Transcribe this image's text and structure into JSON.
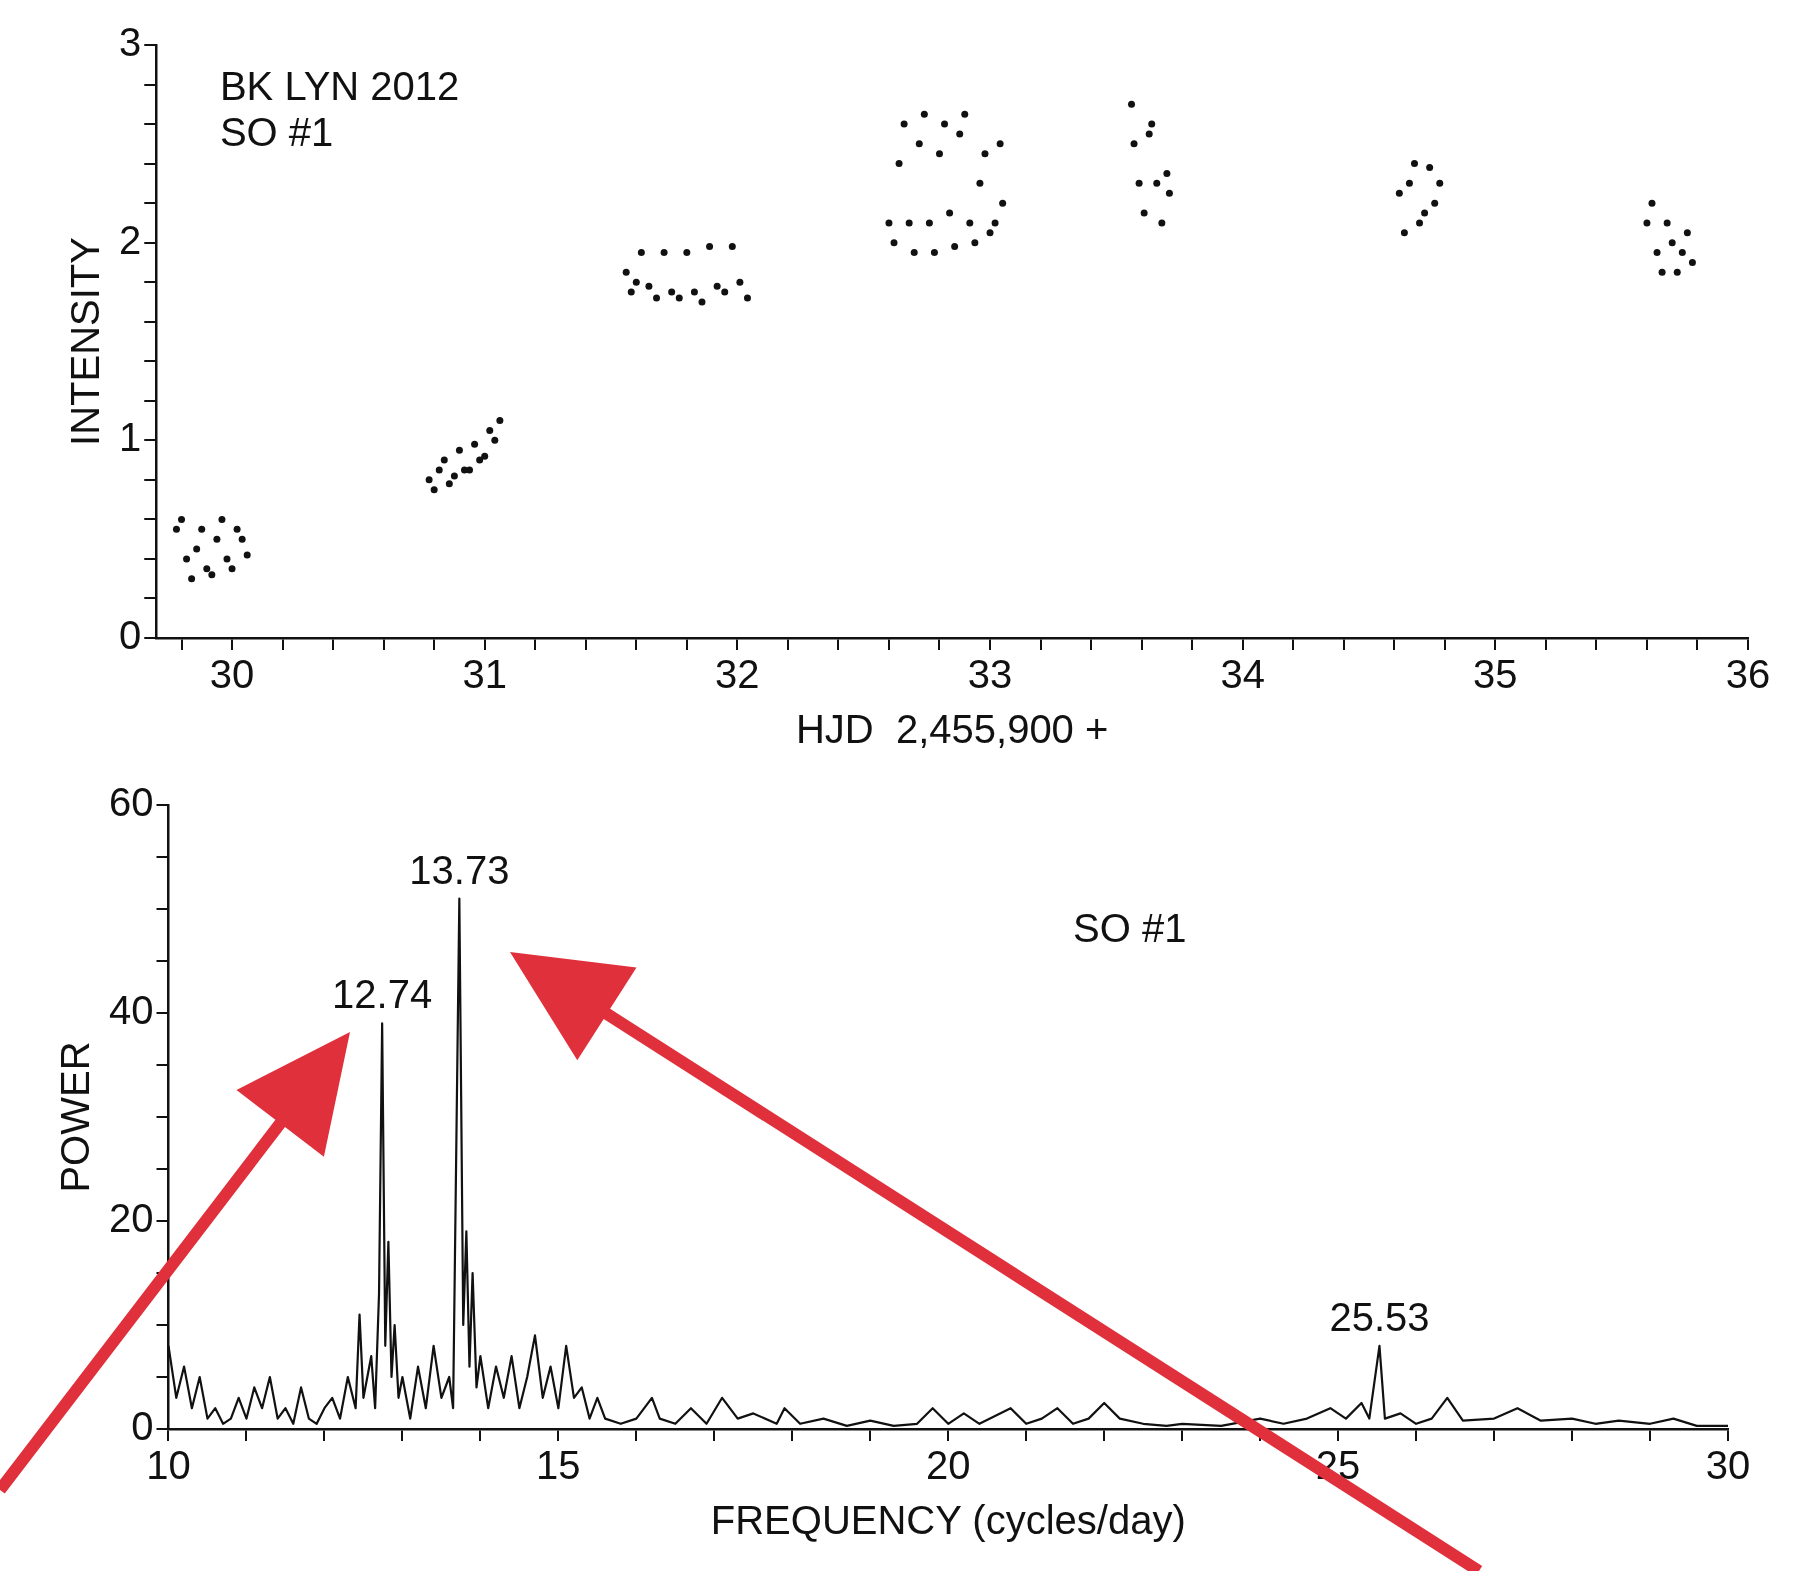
{
  "chart_data": [
    {
      "type": "scatter",
      "xlabel": "HJD  2,455,900 +",
      "ylabel": "INTENSITY",
      "annotations": [
        "BK LYN 2012",
        "SO #1"
      ],
      "xlim": [
        29.7,
        36
      ],
      "xticks": [
        {
          "value": 29.8,
          "label": null
        },
        30,
        {
          "value": 30.2,
          "label": null
        },
        {
          "value": 30.4,
          "label": null
        },
        {
          "value": 30.6,
          "label": null
        },
        {
          "value": 30.8,
          "label": null
        },
        31,
        {
          "value": 31.2,
          "label": null
        },
        {
          "value": 31.4,
          "label": null
        },
        {
          "value": 31.6,
          "label": null
        },
        {
          "value": 31.8,
          "label": null
        },
        32,
        {
          "value": 32.2,
          "label": null
        },
        {
          "value": 32.4,
          "label": null
        },
        {
          "value": 32.6,
          "label": null
        },
        {
          "value": 32.8,
          "label": null
        },
        33,
        {
          "value": 33.2,
          "label": null
        },
        {
          "value": 33.4,
          "label": null
        },
        {
          "value": 33.6,
          "label": null
        },
        {
          "value": 33.8,
          "label": null
        },
        34,
        {
          "value": 34.2,
          "label": null
        },
        {
          "value": 34.4,
          "label": null
        },
        {
          "value": 34.6,
          "label": null
        },
        {
          "value": 34.8,
          "label": null
        },
        35,
        {
          "value": 35.2,
          "label": null
        },
        {
          "value": 35.4,
          "label": null
        },
        {
          "value": 35.6,
          "label": null
        },
        {
          "value": 35.8,
          "label": null
        },
        36
      ],
      "ylim": [
        0,
        3
      ],
      "yticks": [
        0,
        {
          "value": 0.2,
          "label": null
        },
        {
          "value": 0.4,
          "label": null
        },
        {
          "value": 0.6,
          "label": null
        },
        {
          "value": 0.8,
          "label": null
        },
        1,
        {
          "value": 1.2,
          "label": null
        },
        {
          "value": 1.4,
          "label": null
        },
        {
          "value": 1.6,
          "label": null
        },
        {
          "value": 1.8,
          "label": null
        },
        2,
        {
          "value": 2.2,
          "label": null
        },
        {
          "value": 2.4,
          "label": null
        },
        {
          "value": 2.6,
          "label": null
        },
        {
          "value": 2.8,
          "label": null
        },
        3
      ],
      "marker": "circle",
      "grid": false,
      "legend": false,
      "series": [
        {
          "color": "#111111",
          "x": [
            29.78,
            29.8,
            29.82,
            29.84,
            29.86,
            29.88,
            29.9,
            29.92,
            29.94,
            29.96,
            29.98,
            30.0,
            30.02,
            30.04,
            30.06,
            30.78,
            30.8,
            30.82,
            30.84,
            30.86,
            30.88,
            30.9,
            30.92,
            30.94,
            30.96,
            30.98,
            31.0,
            31.02,
            31.04,
            31.06,
            31.56,
            31.58,
            31.6,
            31.62,
            31.65,
            31.68,
            31.71,
            31.74,
            31.77,
            31.8,
            31.83,
            31.86,
            31.89,
            31.92,
            31.95,
            31.98,
            32.01,
            32.04,
            32.6,
            32.62,
            32.64,
            32.66,
            32.68,
            32.7,
            32.72,
            32.74,
            32.76,
            32.78,
            32.8,
            32.82,
            32.84,
            32.86,
            32.88,
            32.9,
            32.92,
            32.94,
            32.96,
            32.98,
            33.0,
            33.02,
            33.04,
            33.05,
            33.56,
            33.57,
            33.59,
            33.61,
            33.63,
            33.64,
            33.66,
            33.68,
            33.7,
            33.71,
            34.62,
            34.64,
            34.66,
            34.68,
            34.7,
            34.72,
            34.74,
            34.76,
            34.78,
            35.6,
            35.62,
            35.64,
            35.66,
            35.68,
            35.7,
            35.72,
            35.74,
            35.76,
            35.78
          ],
          "values": [
            0.55,
            0.6,
            0.4,
            0.3,
            0.45,
            0.55,
            0.35,
            0.32,
            0.5,
            0.6,
            0.4,
            0.35,
            0.55,
            0.5,
            0.42,
            0.8,
            0.75,
            0.85,
            0.9,
            0.78,
            0.82,
            0.95,
            0.85,
            0.85,
            0.98,
            0.9,
            0.92,
            1.05,
            1.0,
            1.1,
            1.85,
            1.75,
            1.8,
            1.95,
            1.78,
            1.72,
            1.95,
            1.75,
            1.72,
            1.95,
            1.75,
            1.7,
            1.98,
            1.78,
            1.75,
            1.98,
            1.8,
            1.72,
            2.1,
            2.0,
            2.4,
            2.6,
            2.1,
            1.95,
            2.5,
            2.65,
            2.1,
            1.95,
            2.45,
            2.6,
            2.15,
            1.98,
            2.55,
            2.65,
            2.1,
            2.0,
            2.3,
            2.45,
            2.05,
            2.1,
            2.5,
            2.2,
            2.7,
            2.5,
            2.3,
            2.15,
            2.55,
            2.6,
            2.3,
            2.1,
            2.35,
            2.25,
            2.25,
            2.05,
            2.3,
            2.4,
            2.1,
            2.15,
            2.38,
            2.2,
            2.3,
            2.1,
            2.2,
            1.95,
            1.85,
            2.1,
            2.0,
            1.85,
            1.95,
            2.05,
            1.9
          ]
        }
      ]
    },
    {
      "type": "line",
      "xlabel": "FREQUENCY (cycles/day)",
      "ylabel": "POWER",
      "annotations": [
        {
          "text": "12.74",
          "x": 12.74,
          "y": 39
        },
        {
          "text": "13.73",
          "x": 13.73,
          "y": 51
        },
        {
          "text": "25.53",
          "x": 25.53,
          "y": 8
        },
        "SO #1"
      ],
      "xlim": [
        10,
        30
      ],
      "xticks": [
        10,
        {
          "value": 11,
          "label": null
        },
        {
          "value": 12,
          "label": null
        },
        {
          "value": 13,
          "label": null
        },
        {
          "value": 14,
          "label": null
        },
        15,
        {
          "value": 16,
          "label": null
        },
        {
          "value": 17,
          "label": null
        },
        {
          "value": 18,
          "label": null
        },
        {
          "value": 19,
          "label": null
        },
        20,
        {
          "value": 21,
          "label": null
        },
        {
          "value": 22,
          "label": null
        },
        {
          "value": 23,
          "label": null
        },
        {
          "value": 24,
          "label": null
        },
        25,
        {
          "value": 26,
          "label": null
        },
        {
          "value": 27,
          "label": null
        },
        {
          "value": 28,
          "label": null
        },
        {
          "value": 29,
          "label": null
        },
        30
      ],
      "ylim": [
        0,
        60
      ],
      "yticks": [
        0,
        {
          "value": 5,
          "label": null
        },
        {
          "value": 10,
          "label": null
        },
        {
          "value": 15,
          "label": null
        },
        20,
        {
          "value": 25,
          "label": null
        },
        {
          "value": 30,
          "label": null
        },
        {
          "value": 35,
          "label": null
        },
        40,
        {
          "value": 45,
          "label": null
        },
        {
          "value": 50,
          "label": null
        },
        {
          "value": 55,
          "label": null
        },
        60
      ],
      "marker": "none",
      "line_style": "solid",
      "grid": false,
      "legend": false,
      "series": [
        {
          "color": "#111111",
          "x": [
            10.0,
            10.1,
            10.2,
            10.3,
            10.4,
            10.5,
            10.6,
            10.7,
            10.8,
            10.9,
            11.0,
            11.1,
            11.2,
            11.3,
            11.4,
            11.5,
            11.6,
            11.7,
            11.8,
            11.9,
            12.0,
            12.1,
            12.2,
            12.3,
            12.4,
            12.45,
            12.5,
            12.6,
            12.65,
            12.7,
            12.74,
            12.78,
            12.82,
            12.86,
            12.9,
            12.95,
            13.0,
            13.1,
            13.2,
            13.3,
            13.4,
            13.5,
            13.6,
            13.65,
            13.73,
            13.78,
            13.82,
            13.86,
            13.9,
            13.95,
            14.0,
            14.1,
            14.2,
            14.3,
            14.4,
            14.5,
            14.6,
            14.7,
            14.8,
            14.9,
            15.0,
            15.1,
            15.2,
            15.3,
            15.4,
            15.5,
            15.6,
            15.8,
            16.0,
            16.2,
            16.3,
            16.5,
            16.7,
            16.9,
            17.1,
            17.3,
            17.5,
            17.8,
            17.9,
            18.1,
            18.4,
            18.7,
            19.0,
            19.3,
            19.6,
            19.8,
            20.0,
            20.2,
            20.4,
            20.8,
            21.0,
            21.2,
            21.4,
            21.6,
            21.8,
            22.0,
            22.2,
            22.5,
            22.8,
            23.0,
            23.5,
            24.0,
            24.3,
            24.6,
            24.9,
            25.1,
            25.3,
            25.4,
            25.53,
            25.6,
            25.8,
            26.0,
            26.2,
            26.4,
            26.6,
            27.0,
            27.3,
            27.6,
            28.0,
            28.3,
            28.6,
            29.0,
            29.3,
            29.6,
            30.0
          ],
          "values": [
            8,
            3,
            6,
            2,
            5,
            1,
            2,
            0.5,
            1,
            3,
            1,
            4,
            2,
            5,
            1,
            2,
            0.5,
            4,
            1,
            0.5,
            2,
            3,
            1,
            5,
            2,
            11,
            3,
            7,
            2,
            13,
            39,
            8,
            18,
            5,
            10,
            3,
            5,
            1,
            6,
            2,
            8,
            3,
            5,
            2,
            51,
            10,
            19,
            6,
            15,
            4,
            7,
            2,
            6,
            3,
            7,
            2,
            5,
            9,
            3,
            6,
            2,
            8,
            3,
            4,
            1,
            3,
            1,
            0.5,
            1,
            3,
            1,
            0.5,
            2,
            0.5,
            3,
            1,
            1.5,
            0.5,
            2,
            0.5,
            1,
            0.3,
            0.8,
            0.3,
            0.5,
            2,
            0.5,
            1.5,
            0.5,
            2,
            0.5,
            1,
            2,
            0.5,
            1,
            2.5,
            1,
            0.5,
            0.3,
            0.5,
            0.3,
            1,
            0.5,
            1,
            2,
            1,
            2.5,
            1,
            8,
            1,
            1.5,
            0.5,
            1,
            3,
            0.8,
            1,
            2,
            0.8,
            1,
            0.5,
            0.8,
            0.5,
            1,
            0.3,
            0.3
          ]
        }
      ]
    }
  ]
}
